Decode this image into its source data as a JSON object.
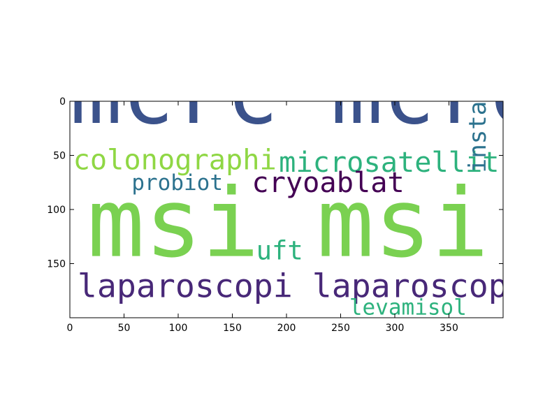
{
  "chart_data": {
    "type": "wordcloud",
    "title": "",
    "xlabel": "",
    "ylabel": "",
    "xlim": [
      0,
      400
    ],
    "ylim": [
      200,
      0
    ],
    "xticks": [
      0,
      50,
      100,
      150,
      200,
      250,
      300,
      350
    ],
    "yticks": [
      0,
      50,
      100,
      150
    ],
    "grid": false,
    "words": [
      {
        "text": "mcrc mcrc",
        "color": "#3b528b",
        "x": 0,
        "y": 20,
        "size": 80,
        "rotate": 0
      },
      {
        "text": "colonographi",
        "color": "#8fd744",
        "x": 3,
        "y": 63,
        "size": 26,
        "rotate": 0
      },
      {
        "text": "microsatellit",
        "color": "#2db27d",
        "x": 193,
        "y": 65,
        "size": 26,
        "rotate": 0
      },
      {
        "text": "probiot",
        "color": "#2c728e",
        "x": 57,
        "y": 82,
        "size": 20,
        "rotate": 0
      },
      {
        "text": "cryoablat",
        "color": "#440154",
        "x": 168,
        "y": 84,
        "size": 26,
        "rotate": 0
      },
      {
        "text": "msi msi",
        "color": "#7ad151",
        "x": 16,
        "y": 143,
        "size": 88,
        "rotate": 0
      },
      {
        "text": "instabl",
        "color": "#2c728e",
        "x": 384,
        "y": 66,
        "size": 22,
        "rotate": 90
      },
      {
        "text": "uft",
        "color": "#2db27d",
        "x": 172,
        "y": 146,
        "size": 24,
        "rotate": 0
      },
      {
        "text": "laparoscopi laparoscopi",
        "color": "#482878",
        "x": 7,
        "y": 181,
        "size": 30,
        "rotate": 0
      },
      {
        "text": "levamisol",
        "color": "#2db27d",
        "x": 258,
        "y": 197,
        "size": 20,
        "rotate": 0
      }
    ]
  }
}
